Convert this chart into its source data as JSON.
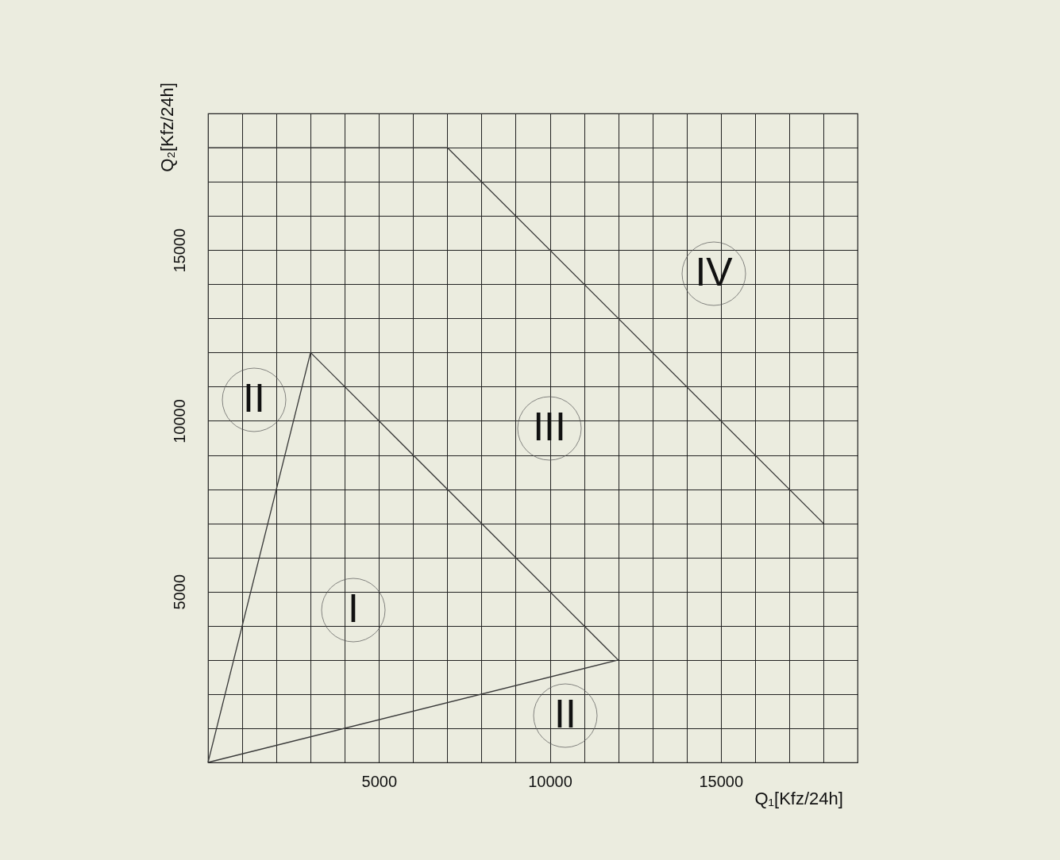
{
  "chart_data": {
    "type": "line",
    "xlabel": "Q₁[Kfz/24h]",
    "ylabel": "Q₂[Kfz/24h]",
    "xlim": [
      0,
      19000
    ],
    "ylim": [
      0,
      19000
    ],
    "xticks": [
      {
        "value": 1000,
        "label": null
      },
      {
        "value": 2000,
        "label": null
      },
      {
        "value": 3000,
        "label": null
      },
      {
        "value": 4000,
        "label": null
      },
      5000,
      {
        "value": 6000,
        "label": null
      },
      {
        "value": 7000,
        "label": null
      },
      {
        "value": 8000,
        "label": null
      },
      {
        "value": 9000,
        "label": null
      },
      10000,
      {
        "value": 11000,
        "label": null
      },
      {
        "value": 12000,
        "label": null
      },
      {
        "value": 13000,
        "label": null
      },
      {
        "value": 14000,
        "label": null
      },
      15000,
      {
        "value": 16000,
        "label": null
      },
      {
        "value": 17000,
        "label": null
      },
      {
        "value": 18000,
        "label": null
      }
    ],
    "yticks": [
      {
        "value": 1000,
        "label": null
      },
      {
        "value": 2000,
        "label": null
      },
      {
        "value": 3000,
        "label": null
      },
      {
        "value": 4000,
        "label": null
      },
      5000,
      {
        "value": 6000,
        "label": null
      },
      {
        "value": 7000,
        "label": null
      },
      {
        "value": 8000,
        "label": null
      },
      {
        "value": 9000,
        "label": null
      },
      10000,
      {
        "value": 11000,
        "label": null
      },
      {
        "value": 12000,
        "label": null
      },
      {
        "value": 13000,
        "label": null
      },
      {
        "value": 14000,
        "label": null
      },
      15000,
      {
        "value": 16000,
        "label": null
      },
      {
        "value": 17000,
        "label": null
      },
      {
        "value": 18000,
        "label": null
      }
    ],
    "grid": true,
    "marker": "none",
    "line_style": "solid",
    "series": [
      {
        "color": "#3a3a3a",
        "x": [
          0,
          3000
        ],
        "values": [
          0,
          12000
        ]
      },
      {
        "color": "#3a3a3a",
        "x": [
          3000,
          12000
        ],
        "values": [
          12000,
          3000
        ]
      },
      {
        "color": "#3a3a3a",
        "x": [
          0,
          12000
        ],
        "values": [
          0,
          3000
        ]
      },
      {
        "color": "#3a3a3a",
        "x": [
          0,
          7000,
          18000
        ],
        "values": [
          18000,
          18000,
          7000
        ]
      }
    ],
    "annotations": [
      "IV",
      "II",
      "III",
      "I",
      "II"
    ]
  }
}
